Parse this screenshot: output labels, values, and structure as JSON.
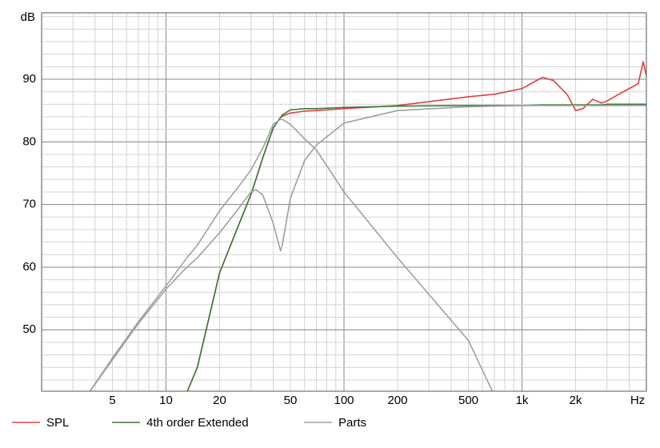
{
  "chart_data": {
    "type": "line",
    "y_label": "dB",
    "xlog": true,
    "grid": true,
    "xlim": [
      2,
      5000
    ],
    "ylim": [
      40.2,
      100.6
    ],
    "xticks": [
      5,
      10,
      20,
      50,
      100,
      200,
      500,
      {
        "value": 1000,
        "label": "1k"
      },
      {
        "value": 2000,
        "label": "2k"
      },
      {
        "value": 5000,
        "label": "Hz"
      }
    ],
    "yticks": [
      50,
      60,
      70,
      80,
      90
    ],
    "x": [
      2,
      3.7,
      5,
      7,
      10,
      13.1,
      15,
      20,
      25,
      30,
      32,
      35,
      40,
      44,
      45,
      50,
      60,
      70,
      100,
      200,
      500,
      700,
      1000,
      1300,
      1500,
      1800,
      2000,
      2200,
      2500,
      2800,
      3000,
      3500,
      4000,
      4500,
      4800,
      5000
    ],
    "series": [
      {
        "name": "SPL",
        "color": "#e04040",
        "values": [
          null,
          null,
          null,
          null,
          null,
          40,
          44,
          59.1,
          66,
          71.6,
          74,
          77.5,
          82.2,
          83.9,
          84.1,
          84.6,
          84.9,
          85.0,
          85.3,
          85.8,
          87.2,
          87.6,
          88.5,
          90.3,
          89.8,
          87.5,
          85.0,
          85.3,
          86.8,
          86.2,
          86.5,
          87.6,
          88.5,
          89.3,
          92.8,
          90.5
        ]
      },
      {
        "name": "4th order Extended",
        "color": "#3a7a3a",
        "values": [
          null,
          null,
          null,
          null,
          null,
          40,
          44,
          59.1,
          66,
          71.6,
          74,
          77.5,
          82.2,
          83.9,
          84.3,
          85.1,
          85.3,
          85.3,
          85.5,
          85.7,
          85.8,
          85.8,
          85.8,
          85.9,
          85.9,
          85.9,
          85.9,
          85.9,
          85.9,
          85.9,
          86,
          86,
          86,
          86,
          86,
          86
        ]
      },
      {
        "name": "Parts",
        "color": "#a0a0a0",
        "values": [
          null,
          40,
          45.2,
          51,
          56.5,
          60,
          61.5,
          65.5,
          69,
          72,
          72.4,
          71.5,
          67,
          62.6,
          63.5,
          71,
          77,
          79.5,
          83,
          85,
          85.6,
          85.7,
          85.8,
          85.8,
          85.8,
          85.8,
          85.8,
          85.8,
          85.8,
          85.8,
          85.8,
          85.8,
          85.8,
          85.8,
          85.8,
          85.8
        ]
      },
      {
        "color": "#a0a0a0",
        "values": [
          null,
          40,
          45.5,
          51.3,
          57,
          61.5,
          63.5,
          69,
          72.5,
          75.5,
          77,
          79,
          82.8,
          83.6,
          83.6,
          82.8,
          80.5,
          78.7,
          72,
          61.5,
          48.3,
          39.5,
          null,
          null,
          null,
          null,
          null,
          null,
          null,
          null,
          null,
          null,
          null,
          null,
          null,
          null
        ]
      }
    ]
  }
}
